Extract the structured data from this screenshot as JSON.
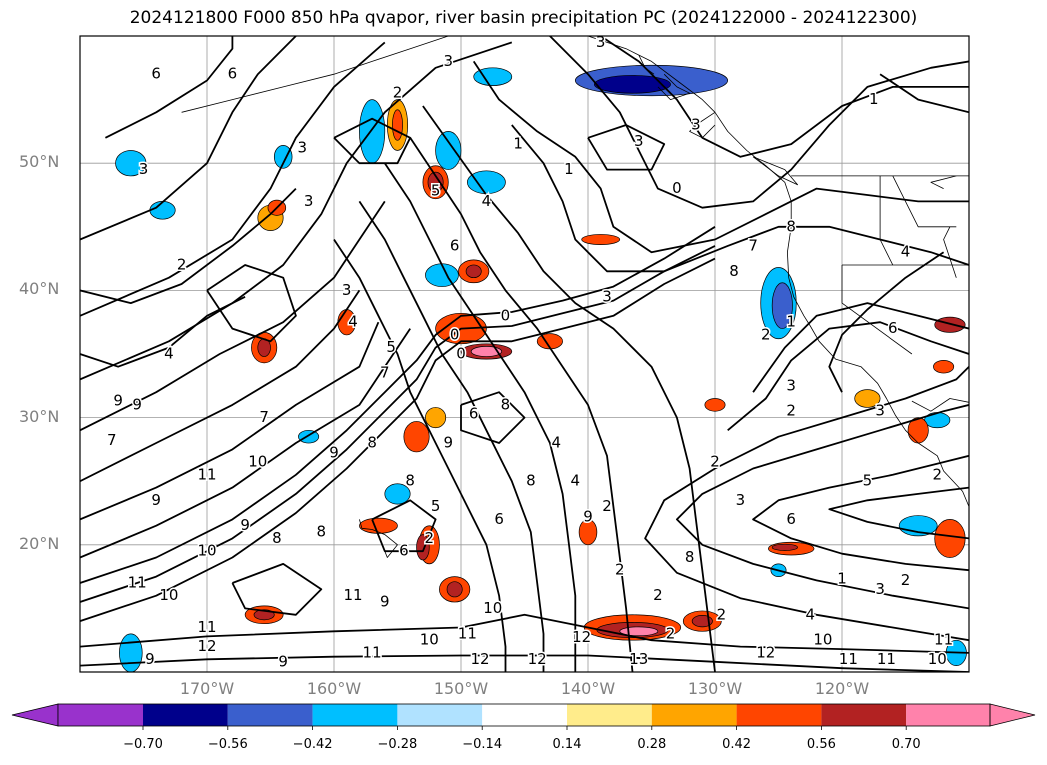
{
  "title": "2024121800 F000 850 hPa qvapor, river basin precipitation PC (2024122000 - 2024122300)",
  "map": {
    "lon_range": [
      -180,
      -110
    ],
    "lat_range": [
      10,
      60
    ],
    "lat_labels": [
      {
        "lat": 50,
        "text": "50°N"
      },
      {
        "lat": 40,
        "text": "40°N"
      },
      {
        "lat": 30,
        "text": "30°N"
      },
      {
        "lat": 20,
        "text": "20°N"
      }
    ],
    "lon_labels": [
      {
        "lon": -170,
        "text": "170°W"
      },
      {
        "lon": -160,
        "text": "160°W"
      },
      {
        "lon": -150,
        "text": "150°W"
      },
      {
        "lon": -140,
        "text": "140°W"
      },
      {
        "lon": -130,
        "text": "130°W"
      },
      {
        "lon": -120,
        "text": "120°W"
      }
    ],
    "contour_labels": [
      {
        "lon": -175,
        "lat": 49.5,
        "text": "3"
      },
      {
        "lon": -175.5,
        "lat": 31,
        "text": "9"
      },
      {
        "lon": -168,
        "lat": 57,
        "text": "6"
      },
      {
        "lon": -174,
        "lat": 57,
        "text": "6"
      },
      {
        "lon": -162.5,
        "lat": 51.2,
        "text": "3"
      },
      {
        "lon": -162,
        "lat": 47,
        "text": "3"
      },
      {
        "lon": -172,
        "lat": 42,
        "text": "2"
      },
      {
        "lon": -159,
        "lat": 40,
        "text": "3"
      },
      {
        "lon": -155,
        "lat": 55.5,
        "text": "2"
      },
      {
        "lon": -151,
        "lat": 58,
        "text": "3"
      },
      {
        "lon": -139,
        "lat": 59.5,
        "text": "3"
      },
      {
        "lon": -145.5,
        "lat": 51.5,
        "text": "1"
      },
      {
        "lon": -141.5,
        "lat": 49.5,
        "text": "1"
      },
      {
        "lon": -133,
        "lat": 48,
        "text": "0"
      },
      {
        "lon": -136,
        "lat": 51.7,
        "text": "3"
      },
      {
        "lon": -131.5,
        "lat": 53,
        "text": "3"
      },
      {
        "lon": -117.5,
        "lat": 55,
        "text": "1"
      },
      {
        "lon": -148,
        "lat": 47,
        "text": "4"
      },
      {
        "lon": -152,
        "lat": 47.8,
        "text": "5"
      },
      {
        "lon": -150.5,
        "lat": 43.5,
        "text": "6"
      },
      {
        "lon": -138.5,
        "lat": 39.5,
        "text": "3"
      },
      {
        "lon": -146.5,
        "lat": 38,
        "text": "0"
      },
      {
        "lon": -150.5,
        "lat": 36.5,
        "text": "0"
      },
      {
        "lon": -150,
        "lat": 35,
        "text": "0"
      },
      {
        "lon": -127,
        "lat": 43.5,
        "text": "7"
      },
      {
        "lon": -124,
        "lat": 45,
        "text": "8"
      },
      {
        "lon": -128.5,
        "lat": 41.5,
        "text": "8"
      },
      {
        "lon": -115,
        "lat": 43,
        "text": "4"
      },
      {
        "lon": -158.5,
        "lat": 37.5,
        "text": "4"
      },
      {
        "lon": -155.5,
        "lat": 35.5,
        "text": "5"
      },
      {
        "lon": -156,
        "lat": 33.5,
        "text": "7"
      },
      {
        "lon": -173,
        "lat": 35,
        "text": "4"
      },
      {
        "lon": -177,
        "lat": 31.3,
        "text": "9"
      },
      {
        "lon": -177.5,
        "lat": 28.2,
        "text": "7"
      },
      {
        "lon": -165.5,
        "lat": 30,
        "text": "7"
      },
      {
        "lon": -174,
        "lat": 23.5,
        "text": "9"
      },
      {
        "lon": -170,
        "lat": 25.5,
        "text": "11"
      },
      {
        "lon": -166,
        "lat": 26.5,
        "text": "10"
      },
      {
        "lon": -160,
        "lat": 27.2,
        "text": "9"
      },
      {
        "lon": -157,
        "lat": 28,
        "text": "8"
      },
      {
        "lon": -154,
        "lat": 25,
        "text": "8"
      },
      {
        "lon": -167,
        "lat": 21.5,
        "text": "9"
      },
      {
        "lon": -170,
        "lat": 19.5,
        "text": "10"
      },
      {
        "lon": -164.5,
        "lat": 20.5,
        "text": "8"
      },
      {
        "lon": -161,
        "lat": 21,
        "text": "8"
      },
      {
        "lon": -158.5,
        "lat": 16,
        "text": "11"
      },
      {
        "lon": -156,
        "lat": 15.5,
        "text": "9"
      },
      {
        "lon": -175.5,
        "lat": 17,
        "text": "11"
      },
      {
        "lon": -173,
        "lat": 16,
        "text": "10"
      },
      {
        "lon": -170,
        "lat": 12,
        "text": "12"
      },
      {
        "lon": -174.5,
        "lat": 11,
        "text": "9"
      },
      {
        "lon": -164,
        "lat": 10.8,
        "text": "9"
      },
      {
        "lon": -170,
        "lat": 13.5,
        "text": "11"
      },
      {
        "lon": -152.5,
        "lat": 12.5,
        "text": "10"
      },
      {
        "lon": -149.5,
        "lat": 13,
        "text": "11"
      },
      {
        "lon": -147.5,
        "lat": 15,
        "text": "10"
      },
      {
        "lon": -144,
        "lat": 11,
        "text": "12"
      },
      {
        "lon": -140.5,
        "lat": 12.7,
        "text": "12"
      },
      {
        "lon": -136,
        "lat": 11,
        "text": "13"
      },
      {
        "lon": -157,
        "lat": 11.5,
        "text": "11"
      },
      {
        "lon": -148.5,
        "lat": 11,
        "text": "12"
      },
      {
        "lon": -149,
        "lat": 30.3,
        "text": "6"
      },
      {
        "lon": -151,
        "lat": 28,
        "text": "9"
      },
      {
        "lon": -146.5,
        "lat": 31,
        "text": "8"
      },
      {
        "lon": -144.5,
        "lat": 25,
        "text": "8"
      },
      {
        "lon": -147,
        "lat": 22,
        "text": "6"
      },
      {
        "lon": -142.5,
        "lat": 28,
        "text": "4"
      },
      {
        "lon": -141,
        "lat": 25,
        "text": "4"
      },
      {
        "lon": -152,
        "lat": 23,
        "text": "5"
      },
      {
        "lon": -154.5,
        "lat": 19.5,
        "text": "6"
      },
      {
        "lon": -140,
        "lat": 22.2,
        "text": "9"
      },
      {
        "lon": -137.5,
        "lat": 18,
        "text": "2"
      },
      {
        "lon": -138.5,
        "lat": 23,
        "text": "2"
      },
      {
        "lon": -133.5,
        "lat": 13,
        "text": "2"
      },
      {
        "lon": -129.5,
        "lat": 14.5,
        "text": "2"
      },
      {
        "lon": -134.5,
        "lat": 16,
        "text": "2"
      },
      {
        "lon": -128,
        "lat": 23.5,
        "text": "3"
      },
      {
        "lon": -130,
        "lat": 26.5,
        "text": "2"
      },
      {
        "lon": -124,
        "lat": 22,
        "text": "6"
      },
      {
        "lon": -118,
        "lat": 25,
        "text": "5"
      },
      {
        "lon": -132,
        "lat": 19,
        "text": "8"
      },
      {
        "lon": -124,
        "lat": 30.5,
        "text": "2"
      },
      {
        "lon": -126,
        "lat": 36.5,
        "text": "2"
      },
      {
        "lon": -124,
        "lat": 37.5,
        "text": "1"
      },
      {
        "lon": -124,
        "lat": 32.5,
        "text": "3"
      },
      {
        "lon": -117,
        "lat": 30.5,
        "text": "3"
      },
      {
        "lon": -116,
        "lat": 37,
        "text": "6"
      },
      {
        "lon": -120,
        "lat": 17.3,
        "text": "1"
      },
      {
        "lon": -117,
        "lat": 16.5,
        "text": "3"
      },
      {
        "lon": -115,
        "lat": 17.2,
        "text": "2"
      },
      {
        "lon": -122.5,
        "lat": 14.5,
        "text": "4"
      },
      {
        "lon": -126,
        "lat": 11.5,
        "text": "12"
      },
      {
        "lon": -121.5,
        "lat": 12.5,
        "text": "10"
      },
      {
        "lon": -119.5,
        "lat": 11,
        "text": "11"
      },
      {
        "lon": -116.5,
        "lat": 11,
        "text": "11"
      },
      {
        "lon": -112,
        "lat": 12.5,
        "text": "11"
      },
      {
        "lon": -112.5,
        "lat": 11,
        "text": "10"
      },
      {
        "lon": -112.5,
        "lat": 25.5,
        "text": "2"
      },
      {
        "lon": -152.5,
        "lat": 20.5,
        "text": "2"
      }
    ]
  },
  "colorbar": {
    "colors": [
      "#9932cc",
      "#00008b",
      "#3a5fcd",
      "#00bfff",
      "#b0e2ff",
      "#ffffff",
      "#ffec8b",
      "#ffa500",
      "#ff4500",
      "#b22222",
      "#ff82ab"
    ],
    "tick_labels": [
      "−0.70",
      "−0.56",
      "−0.42",
      "−0.28",
      "−0.14",
      "0.14",
      "0.28",
      "0.42",
      "0.56",
      "0.70"
    ]
  }
}
